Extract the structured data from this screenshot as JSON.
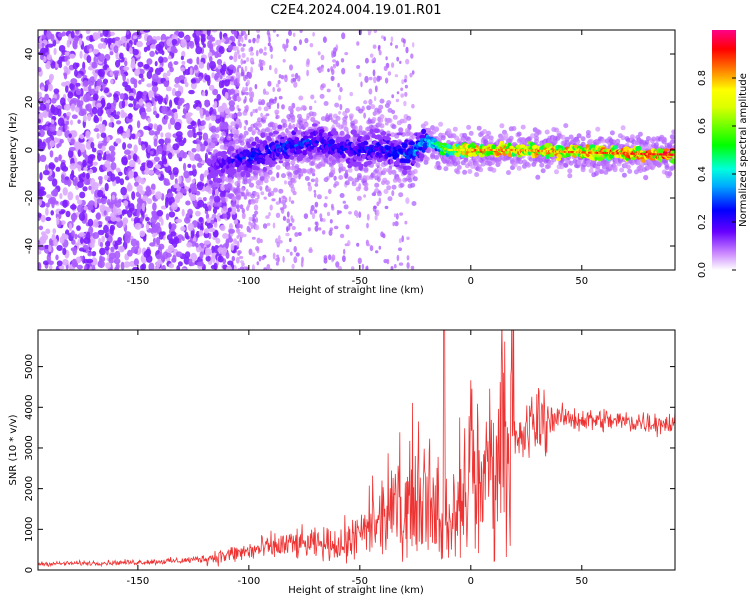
{
  "title": "C2E4.2024.004.19.01.R01",
  "chart_data": [
    {
      "type": "heatmap",
      "xlabel": "Height of straight line (km)",
      "ylabel": "Frequency (Hz)",
      "xlim": [
        -195,
        92
      ],
      "ylim": [
        -50,
        50
      ],
      "xticks": [
        -150,
        -100,
        -50,
        0,
        50
      ],
      "yticks": [
        -40,
        -20,
        0,
        20,
        40
      ],
      "colorbar": {
        "label": "Normalized spectral amplitude",
        "range": [
          0.0,
          1.0
        ],
        "ticks": [
          0.0,
          0.2,
          0.4,
          0.6,
          0.8
        ],
        "colormap": [
          "#ffffff",
          "#8800ff",
          "#0000ff",
          "#00ffff",
          "#00ff00",
          "#ffff00",
          "#ff0000",
          "#ff0077"
        ]
      },
      "signal_track": {
        "x": [
          -115,
          -110,
          -100,
          -90,
          -80,
          -70,
          -60,
          -50,
          -40,
          -30,
          -25,
          -20,
          -10,
          0,
          20,
          50,
          92
        ],
        "freq_center": [
          -7,
          -5,
          -3,
          0,
          2,
          4,
          1,
          0,
          1,
          -2,
          -1,
          4,
          0,
          0,
          0,
          -1,
          -2
        ],
        "peak_amplitude": [
          0.2,
          0.25,
          0.3,
          0.3,
          0.35,
          0.3,
          0.3,
          0.3,
          0.3,
          0.35,
          0.4,
          0.4,
          0.7,
          0.9,
          0.9,
          0.9,
          1.0
        ]
      },
      "grid": false
    },
    {
      "type": "line",
      "xlabel": "Height of straight line (km)",
      "ylabel": "SNR (10 * v/v)",
      "xlim": [
        -195,
        92
      ],
      "ylim": [
        0,
        5900
      ],
      "xticks": [
        -150,
        -100,
        -50,
        0,
        50
      ],
      "yticks": [
        0,
        1000,
        2000,
        3000,
        4000,
        5000
      ],
      "series": [
        {
          "color": "#ee3333",
          "x": [
            -195,
            -170,
            -150,
            -130,
            -120,
            -110,
            -100,
            -90,
            -80,
            -70,
            -60,
            -50,
            -40,
            -30,
            -25,
            -20,
            -15,
            -12,
            -10,
            -5,
            0,
            5,
            10,
            20,
            25,
            30,
            40,
            50,
            70,
            92
          ],
          "y": [
            150,
            170,
            190,
            230,
            280,
            360,
            460,
            560,
            640,
            620,
            650,
            800,
            1150,
            1500,
            1800,
            2100,
            1600,
            1000,
            1200,
            1700,
            2050,
            2300,
            2600,
            3000,
            3400,
            3650,
            3750,
            3700,
            3650,
            3600
          ]
        }
      ],
      "spike": {
        "x": -12,
        "y": 5900
      },
      "grid": false
    }
  ]
}
